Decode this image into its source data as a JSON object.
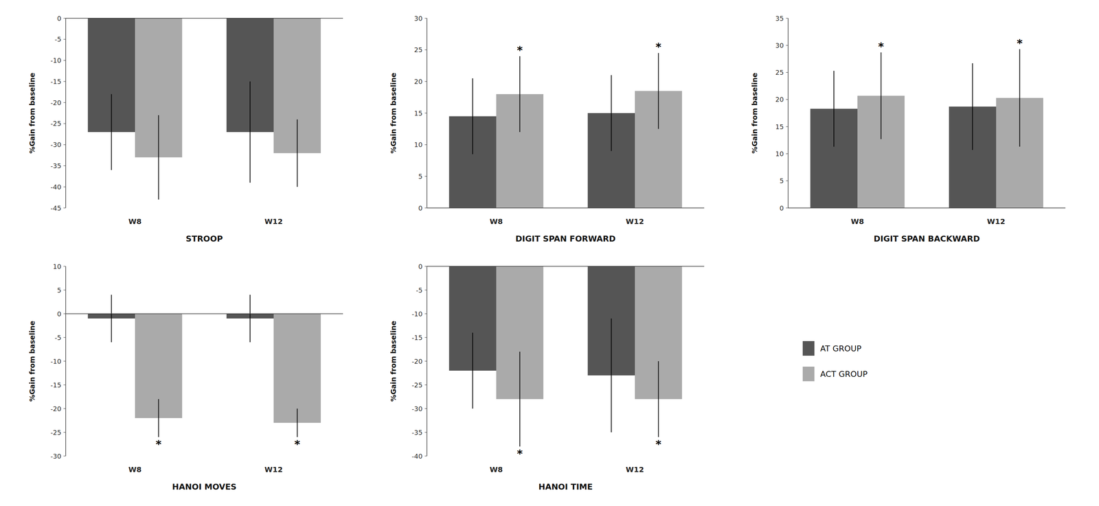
{
  "chart_data": [
    {
      "type": "bar",
      "xlabel": "STROOP",
      "ylabel": "%Gain from baseline",
      "ylim": [
        -45,
        0
      ],
      "yticks": [
        0,
        -5,
        -10,
        -15,
        -20,
        -25,
        -30,
        -35,
        -40,
        -45
      ],
      "categories": [
        "W8",
        "W12"
      ],
      "legend": "right",
      "series": [
        {
          "name": "AT GROUP",
          "color": "#555555",
          "values": [
            -27,
            -27
          ],
          "errors": [
            9,
            12
          ]
        },
        {
          "name": "ACT GROUP",
          "color": "#aaaaaa",
          "values": [
            -33,
            -32
          ],
          "errors": [
            10,
            8
          ]
        }
      ]
    },
    {
      "type": "bar",
      "xlabel": "DIGIT SPAN FORWARD",
      "ylabel": "%Gain from baseline",
      "ylim": [
        0,
        30
      ],
      "yticks": [
        0,
        5,
        10,
        15,
        20,
        25,
        30
      ],
      "categories": [
        "W8",
        "W12"
      ],
      "series": [
        {
          "name": "AT GROUP",
          "color": "#555555",
          "values": [
            14.5,
            15.0
          ],
          "errors": [
            6,
            6
          ]
        },
        {
          "name": "ACT GROUP",
          "color": "#aaaaaa",
          "values": [
            18.0,
            18.5
          ],
          "errors": [
            6,
            6
          ],
          "annotations": [
            "*",
            "*"
          ]
        }
      ]
    },
    {
      "type": "bar",
      "xlabel": "DIGIT SPAN BACKWARD",
      "ylabel": "%Gain from baseline",
      "ylim": [
        0,
        35
      ],
      "yticks": [
        0,
        5,
        10,
        15,
        20,
        25,
        30,
        35
      ],
      "categories": [
        "W8",
        "W12"
      ],
      "series": [
        {
          "name": "AT GROUP",
          "color": "#555555",
          "values": [
            18.3,
            18.7
          ],
          "errors": [
            7,
            8
          ]
        },
        {
          "name": "ACT GROUP",
          "color": "#aaaaaa",
          "values": [
            20.7,
            20.3
          ],
          "errors": [
            8,
            9
          ],
          "annotations": [
            "*",
            "*"
          ]
        }
      ]
    },
    {
      "type": "bar",
      "xlabel": "HANOI MOVES",
      "ylabel": "%Gain from baseline",
      "ylim": [
        -30,
        10
      ],
      "yticks": [
        10,
        5,
        0,
        -5,
        -10,
        -15,
        -20,
        -25,
        -30
      ],
      "categories": [
        "W8",
        "W12"
      ],
      "series": [
        {
          "name": "AT GROUP",
          "color": "#555555",
          "values": [
            -1,
            -1
          ],
          "errors": [
            5,
            5
          ]
        },
        {
          "name": "ACT GROUP",
          "color": "#aaaaaa",
          "values": [
            -22,
            -23
          ],
          "errors": [
            4,
            3
          ],
          "annotations": [
            "*",
            "*"
          ]
        }
      ]
    },
    {
      "type": "bar",
      "xlabel": "HANOI TIME",
      "ylabel": "%Gain from baseline",
      "ylim": [
        -40,
        0
      ],
      "yticks": [
        0,
        -5,
        -10,
        -15,
        -20,
        -25,
        -30,
        -35,
        -40
      ],
      "categories": [
        "W8",
        "W12"
      ],
      "series": [
        {
          "name": "AT GROUP",
          "color": "#555555",
          "values": [
            -22,
            -23
          ],
          "errors": [
            8,
            12
          ]
        },
        {
          "name": "ACT GROUP",
          "color": "#aaaaaa",
          "values": [
            -28,
            -28
          ],
          "errors": [
            10,
            8
          ],
          "annotations": [
            "*",
            "*"
          ]
        }
      ]
    }
  ]
}
